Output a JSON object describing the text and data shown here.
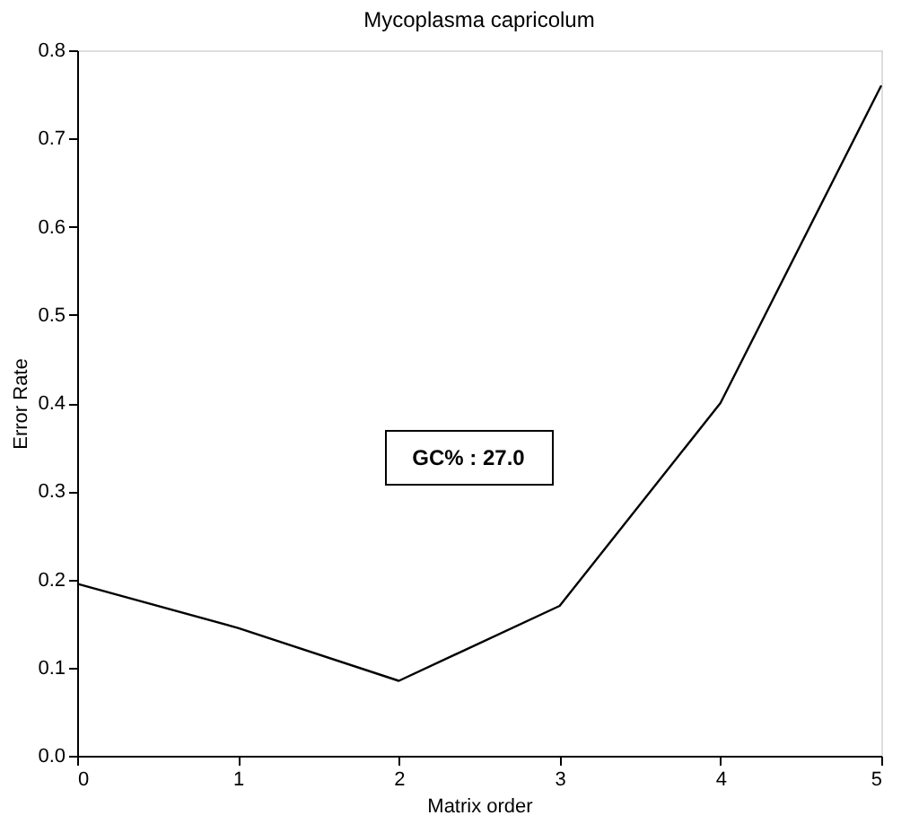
{
  "chart_data": {
    "type": "line",
    "title": "Mycoplasma capricolum",
    "xlabel": "Matrix order",
    "ylabel": "Error Rate",
    "x": [
      0,
      1,
      2,
      3,
      4,
      5
    ],
    "series": [
      {
        "color": "#000000",
        "values": [
          0.195,
          0.145,
          0.085,
          0.17,
          0.4,
          0.76
        ]
      }
    ],
    "xlim": [
      0,
      5
    ],
    "xticks": [
      0,
      1,
      2,
      3,
      4,
      5
    ],
    "ylim": [
      0,
      0.8
    ],
    "yticks": [
      {
        "value": 0,
        "label": "0.0"
      },
      0.1,
      0.2,
      0.3,
      0.4,
      0.5,
      0.6,
      0.7,
      0.8
    ],
    "annotations": [
      "GC% : 27.0"
    ],
    "grid": false,
    "marker": "none",
    "line_style": "solid"
  }
}
